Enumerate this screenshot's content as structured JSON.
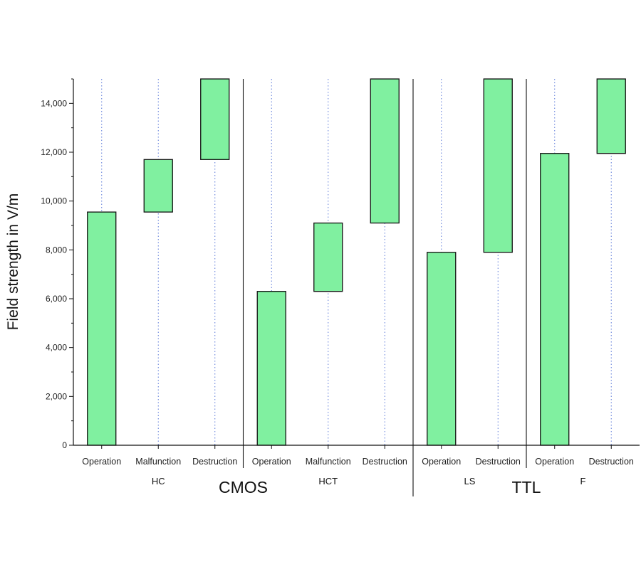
{
  "chart_data": {
    "type": "bar",
    "subtype": "floating-range",
    "title": "",
    "xlabel": "",
    "ylabel": "Field strength in V/m",
    "ylim": [
      0,
      15000
    ],
    "y_ticks": [
      0,
      2000,
      4000,
      6000,
      8000,
      10000,
      12000,
      14000
    ],
    "y_tick_labels": [
      "0",
      "2,000",
      "4,000",
      "6,000",
      "8,000",
      "10,000",
      "12,000",
      "14,000"
    ],
    "grid": "vertical dotted lines at categories",
    "bar_color": "#80f0a0",
    "bar_edge_color": "#111111",
    "grid_color": "#5a78d8",
    "families": [
      {
        "name": "CMOS",
        "groups": [
          "HC",
          "HCT"
        ]
      },
      {
        "name": "TTL",
        "groups": [
          "LS",
          "F"
        ]
      }
    ],
    "groups": [
      {
        "name": "HC",
        "bars": [
          {
            "category": "Operation",
            "low": 0,
            "high": 9550
          },
          {
            "category": "Malfunction",
            "low": 9550,
            "high": 11700
          },
          {
            "category": "Destruction",
            "low": 11700,
            "high": 15000
          }
        ]
      },
      {
        "name": "HCT",
        "bars": [
          {
            "category": "Operation",
            "low": 0,
            "high": 6300
          },
          {
            "category": "Malfunction",
            "low": 6300,
            "high": 9100
          },
          {
            "category": "Destruction",
            "low": 9100,
            "high": 15000
          }
        ]
      },
      {
        "name": "LS",
        "bars": [
          {
            "category": "Operation",
            "low": 0,
            "high": 7900
          },
          {
            "category": "Destruction",
            "low": 7900,
            "high": 15000
          }
        ]
      },
      {
        "name": "F",
        "bars": [
          {
            "category": "Operation",
            "low": 0,
            "high": 11950
          },
          {
            "category": "Destruction",
            "low": 11950,
            "high": 15000
          }
        ]
      }
    ]
  }
}
